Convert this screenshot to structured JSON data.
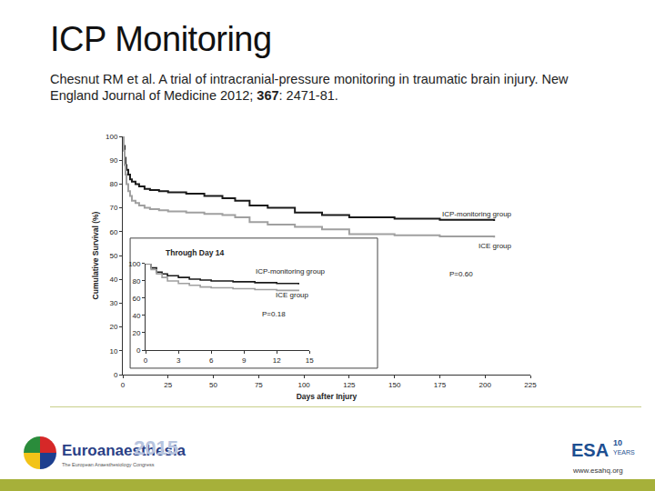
{
  "title": "ICP Monitoring",
  "citation": {
    "before": "Chesnut RM et al. A trial of intracranial-pressure monitoring in traumatic brain injury. New England Journal of Medicine 2012; ",
    "volume": "367",
    "after": ": 2471-81."
  },
  "footer": {
    "congress": "Euroanaesthesia",
    "year": "2015",
    "congress_subtitle": "The European Anaesthesiology Congress",
    "society": "ESA",
    "anniversary_number": "10",
    "anniversary_word": "YEARS",
    "url": "www.esahq.org"
  },
  "chart_data": [
    {
      "type": "line",
      "line_style": "step",
      "grid": false,
      "x_label": "Days after Injury",
      "y_label": "Cumulative Survival (%)",
      "xlim": [
        0,
        225
      ],
      "xticks": [
        0,
        25,
        50,
        75,
        100,
        125,
        150,
        175,
        200,
        225
      ],
      "ylim": [
        0,
        100
      ],
      "yticks": [
        0,
        10,
        20,
        30,
        40,
        50,
        60,
        70,
        80,
        90,
        100
      ],
      "series": [
        {
          "name": "ICP-monitoring group",
          "color": "#1a1a1a",
          "x": [
            0,
            0.5,
            1,
            1.5,
            2,
            3,
            4,
            5,
            7,
            9,
            12,
            15,
            20,
            25,
            35,
            45,
            55,
            62,
            70,
            80,
            95,
            110,
            125,
            150,
            175,
            205
          ],
          "values": [
            100,
            96,
            91,
            88,
            86,
            84,
            82,
            81,
            80,
            79,
            78,
            77.5,
            77,
            76.5,
            76,
            75,
            74,
            73,
            71,
            70,
            68,
            67,
            66,
            65.5,
            65,
            64.5
          ]
        },
        {
          "name": "ICE group",
          "color": "#a0a0a0",
          "x": [
            0,
            0.5,
            1,
            1.5,
            2,
            3,
            4,
            5,
            7,
            9,
            12,
            15,
            20,
            25,
            35,
            45,
            55,
            62,
            70,
            80,
            95,
            110,
            125,
            150,
            175,
            205
          ],
          "values": [
            100,
            94,
            88,
            84,
            80,
            77,
            75,
            73,
            72,
            71,
            70,
            69.5,
            69,
            68.5,
            68,
            67.5,
            67,
            66,
            64,
            63,
            62,
            61,
            59,
            58.5,
            58,
            57.5
          ]
        }
      ],
      "annotations": [
        "P=0.60"
      ]
    },
    {
      "type": "line",
      "line_style": "step",
      "grid": false,
      "title": "Through Day 14",
      "xlim": [
        0,
        15
      ],
      "xticks": [
        0,
        3,
        6,
        9,
        12,
        15
      ],
      "ylim": [
        0,
        100
      ],
      "yticks": [
        0,
        20,
        40,
        60,
        80,
        100
      ],
      "series": [
        {
          "name": "ICP-monitoring group",
          "color": "#1a1a1a",
          "x": [
            0,
            0.5,
            1,
            1.5,
            2,
            3,
            4,
            5,
            6,
            8,
            10,
            12,
            14
          ],
          "values": [
            100,
            95,
            90,
            88,
            86,
            84,
            82,
            81,
            80,
            79,
            78,
            77,
            76
          ]
        },
        {
          "name": "ICE group",
          "color": "#a0a0a0",
          "x": [
            0,
            0.5,
            1,
            1.5,
            2,
            3,
            4,
            5,
            6,
            8,
            10,
            12,
            14
          ],
          "values": [
            100,
            93,
            88,
            84,
            80,
            77,
            75,
            73,
            72,
            71,
            70,
            69,
            68
          ]
        }
      ],
      "annotations": [
        "P=0.18"
      ]
    }
  ]
}
